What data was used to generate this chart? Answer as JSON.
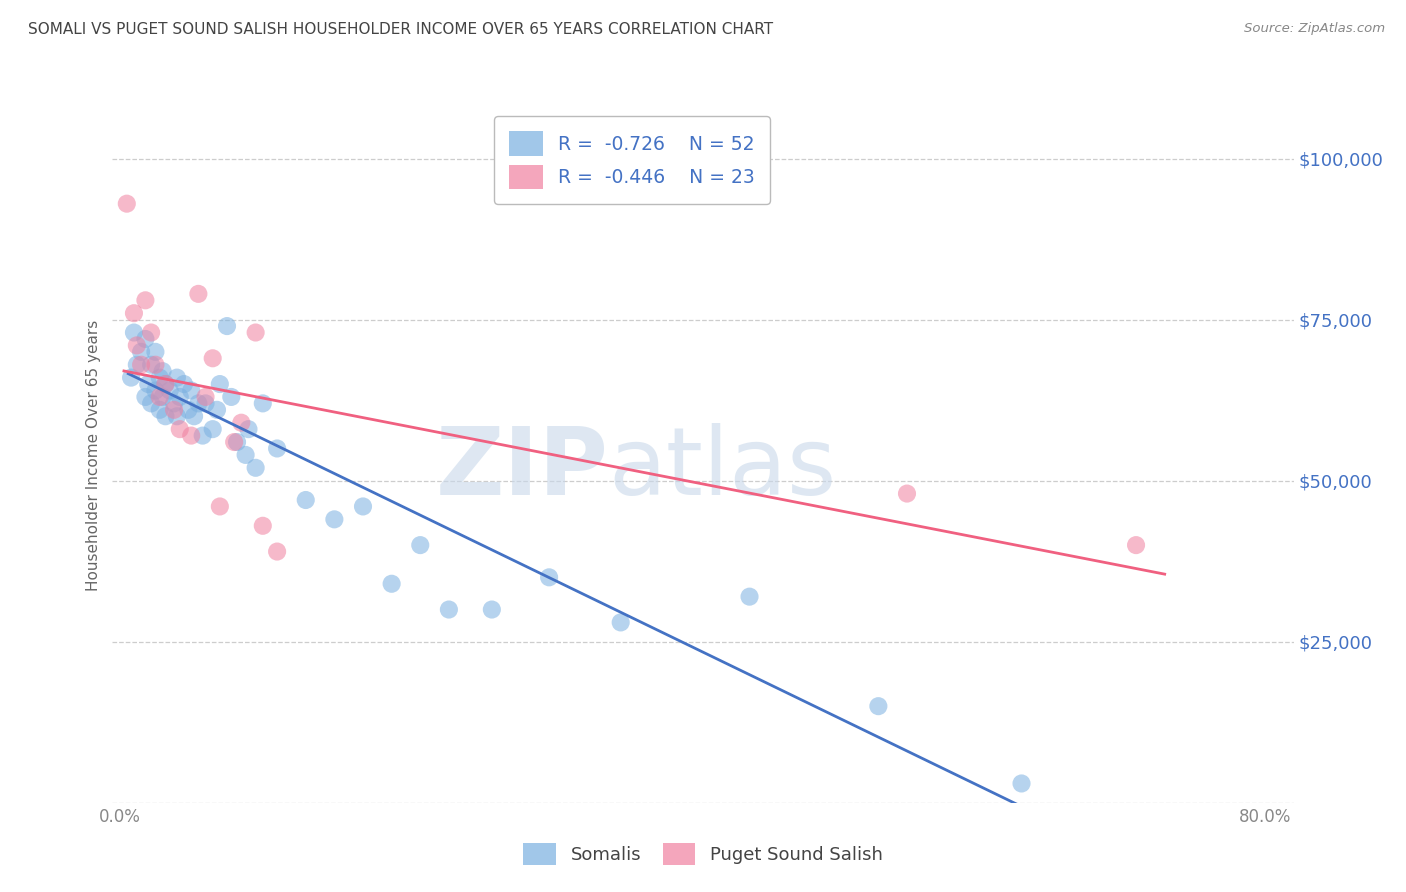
{
  "title": "SOMALI VS PUGET SOUND SALISH HOUSEHOLDER INCOME OVER 65 YEARS CORRELATION CHART",
  "source_text": "Source: ZipAtlas.com",
  "ylabel": "Householder Income Over 65 years",
  "background_color": "#ffffff",
  "plot_bg_color": "#ffffff",
  "grid_color": "#c8c8c8",
  "title_color": "#444444",
  "source_color": "#888888",
  "ytick_color": "#4472c4",
  "xtick_color": "#888888",
  "legend_r_color": "#333333",
  "legend_val_color": "#4472c4",
  "somali_color": "#7ab0e0",
  "salish_color": "#f080a0",
  "somali_line_color": "#4472c4",
  "salish_line_color": "#f06080",
  "ylim_min": 0,
  "ylim_max": 108000,
  "xlim_min": -0.005,
  "xlim_max": 0.82,
  "yticks": [
    0,
    25000,
    50000,
    75000,
    100000
  ],
  "ytick_labels": [
    "",
    "$25,000",
    "$50,000",
    "$75,000",
    "$100,000"
  ],
  "xticks": [
    0.0,
    0.8
  ],
  "xtick_labels": [
    "0.0%",
    "80.0%"
  ],
  "somali_x": [
    0.008,
    0.01,
    0.012,
    0.015,
    0.018,
    0.018,
    0.02,
    0.022,
    0.022,
    0.025,
    0.025,
    0.028,
    0.028,
    0.03,
    0.03,
    0.032,
    0.032,
    0.035,
    0.038,
    0.04,
    0.04,
    0.042,
    0.045,
    0.048,
    0.05,
    0.052,
    0.055,
    0.058,
    0.06,
    0.065,
    0.068,
    0.07,
    0.075,
    0.078,
    0.082,
    0.088,
    0.09,
    0.095,
    0.1,
    0.11,
    0.13,
    0.15,
    0.17,
    0.19,
    0.21,
    0.23,
    0.26,
    0.3,
    0.35,
    0.44,
    0.53,
    0.63
  ],
  "somali_y": [
    66000,
    73000,
    68000,
    70000,
    63000,
    72000,
    65000,
    68000,
    62000,
    64000,
    70000,
    66000,
    61000,
    67000,
    63000,
    65000,
    60000,
    64000,
    62000,
    66000,
    60000,
    63000,
    65000,
    61000,
    64000,
    60000,
    62000,
    57000,
    62000,
    58000,
    61000,
    65000,
    74000,
    63000,
    56000,
    54000,
    58000,
    52000,
    62000,
    55000,
    47000,
    44000,
    46000,
    34000,
    40000,
    30000,
    30000,
    35000,
    28000,
    32000,
    15000,
    3000
  ],
  "salish_x": [
    0.005,
    0.01,
    0.012,
    0.015,
    0.018,
    0.022,
    0.025,
    0.028,
    0.032,
    0.038,
    0.042,
    0.05,
    0.055,
    0.06,
    0.065,
    0.07,
    0.08,
    0.085,
    0.095,
    0.1,
    0.11,
    0.55,
    0.71
  ],
  "salish_y": [
    93000,
    76000,
    71000,
    68000,
    78000,
    73000,
    68000,
    63000,
    65000,
    61000,
    58000,
    57000,
    79000,
    63000,
    69000,
    46000,
    56000,
    59000,
    73000,
    43000,
    39000,
    48000,
    40000
  ],
  "legend_r1": "R = ",
  "legend_v1": "-0.726",
  "legend_n1_label": "N = ",
  "legend_n1_val": "52",
  "legend_r2": "R = ",
  "legend_v2": "-0.446",
  "legend_n2_label": "N = ",
  "legend_n2_val": "23",
  "watermark_zip": "ZIP",
  "watermark_atlas": "atlas",
  "watermark_color": "#c8d8ea",
  "watermark_alpha": 0.6,
  "bottom_label1": "Somalis",
  "bottom_label2": "Puget Sound Salish"
}
